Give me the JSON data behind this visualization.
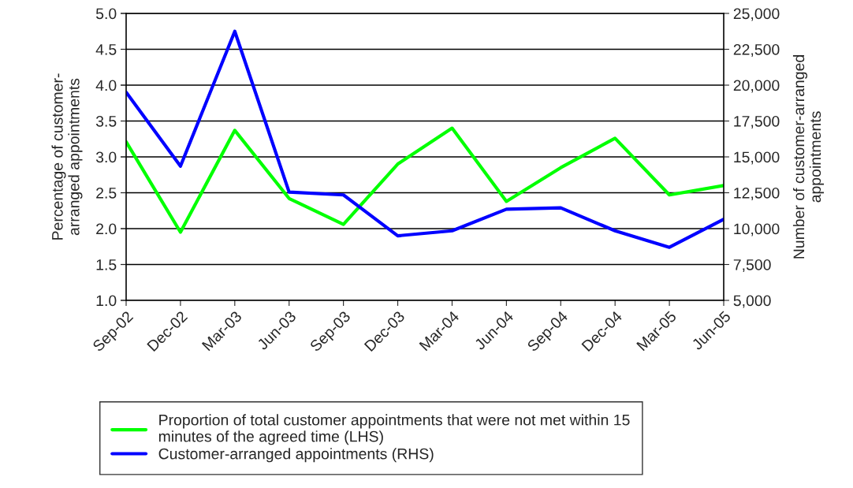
{
  "chart_data": {
    "type": "line",
    "categories": [
      "Sep-02",
      "Dec-02",
      "Mar-03",
      "Jun-03",
      "Sep-03",
      "Dec-03",
      "Mar-04",
      "Jun-04",
      "Sep-04",
      "Dec-04",
      "Mar-05",
      "Jun-05"
    ],
    "series": [
      {
        "name": "Proportion of total customer appointments that were not met within 15\nminutes of the agreed time (LHS)",
        "color": "#00ff00",
        "values": [
          3.21,
          1.95,
          3.37,
          2.42,
          2.06,
          2.9,
          3.4,
          2.38,
          2.85,
          3.26,
          2.47,
          2.6
        ]
      },
      {
        "name": "Customer-arranged appointments (RHS)",
        "color": "#0000ff",
        "axis": "y2",
        "values": [
          19500,
          14350,
          23750,
          12550,
          12350,
          9500,
          9850,
          11350,
          11450,
          9850,
          8700,
          10650
        ]
      }
    ],
    "ylabel": "Percentage of customer-\narranged appointments",
    "y2label": "Number of customer-arranged\nappointments",
    "ylim": [
      1.0,
      5.0
    ],
    "yticks": [
      {
        "value": 1.0,
        "label": "1.0"
      },
      {
        "value": 1.5,
        "label": "1.5"
      },
      {
        "value": 2.0,
        "label": "2.0"
      },
      {
        "value": 2.5,
        "label": "2.5"
      },
      {
        "value": 3.0,
        "label": "3.0"
      },
      {
        "value": 3.5,
        "label": "3.5"
      },
      {
        "value": 4.0,
        "label": "4.0"
      },
      {
        "value": 4.5,
        "label": "4.5"
      },
      {
        "value": 5.0,
        "label": "5.0"
      }
    ],
    "y2lim": [
      5000,
      25000
    ],
    "y2ticks": [
      {
        "value": 5000,
        "label": "5,000"
      },
      {
        "value": 7500,
        "label": "7,500"
      },
      {
        "value": 10000,
        "label": "10,000"
      },
      {
        "value": 12500,
        "label": "12,500"
      },
      {
        "value": 15000,
        "label": "15,000"
      },
      {
        "value": 17500,
        "label": "17,500"
      },
      {
        "value": 20000,
        "label": "20,000"
      },
      {
        "value": 22500,
        "label": "22,500"
      },
      {
        "value": 25000,
        "label": "25,000"
      }
    ],
    "grid": "y",
    "legend": "bottom",
    "marker": "none",
    "line_style": "solid"
  }
}
